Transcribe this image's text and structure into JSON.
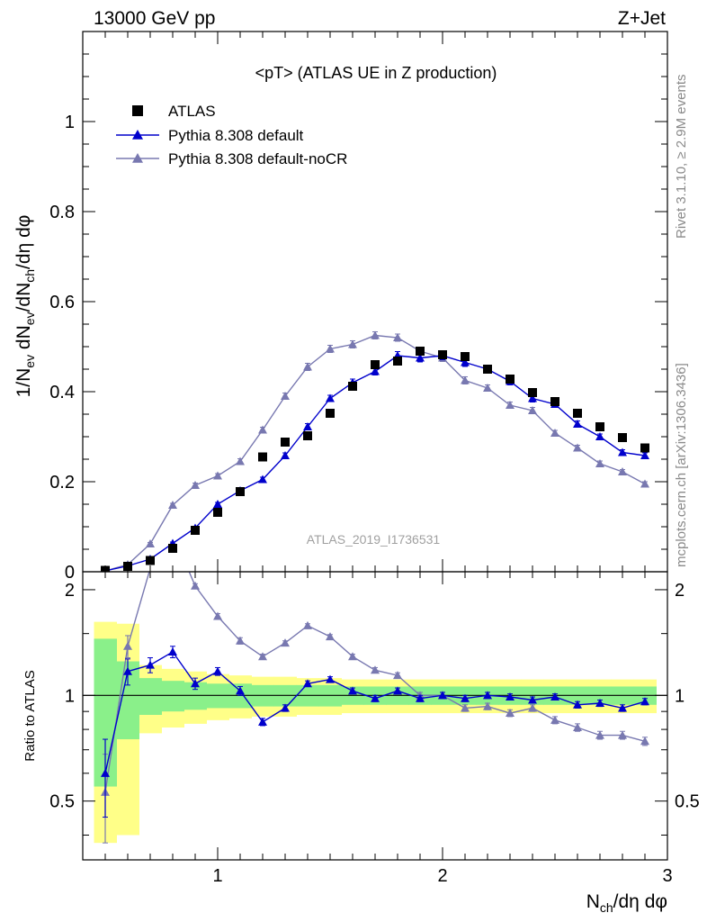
{
  "header": {
    "energy_label": "13000 GeV pp",
    "process_label": "Z+Jet",
    "plot_title": "<pT> (ATLAS UE in Z production)",
    "side_label_top": "Rivet 3.1.10, ≥ 2.9M events",
    "side_label_bottom": "mcplots.cern.ch [arXiv:1306.3436]",
    "watermark": "ATLAS_2019_I1736531"
  },
  "colors": {
    "data": "#000000",
    "default": "#0000cc",
    "nocr": "#7878b0",
    "band_inner": "#8af08a",
    "band_outer": "#ffff88"
  },
  "chart_data": [
    {
      "type": "scatter",
      "panel": "main",
      "ylabel": "1/N_ev dN_ev/dN_ch/dη dφ",
      "ylabel_parts": {
        "a": "1/N",
        "a_sub": "ev",
        "b": " dN",
        "b_sub": "ev",
        "c": "/dN",
        "c_sub": "ch",
        "d": "/dη dφ"
      },
      "xlim": [
        0.4,
        3.0
      ],
      "ylim": [
        0,
        1.2
      ],
      "yticks": [
        0,
        0.2,
        0.4,
        0.6,
        0.8,
        1
      ],
      "ytick_labels": [
        "0",
        "0.2",
        "0.4",
        "0.6",
        "0.8",
        "1"
      ],
      "legend_position": "top-left",
      "x": [
        0.5,
        0.6,
        0.7,
        0.8,
        0.9,
        1.0,
        1.1,
        1.2,
        1.3,
        1.4,
        1.5,
        1.6,
        1.7,
        1.8,
        1.9,
        2.0,
        2.1,
        2.2,
        2.3,
        2.4,
        2.5,
        2.6,
        2.7,
        2.8,
        2.9
      ],
      "series": [
        {
          "name": "ATLAS",
          "marker": "square",
          "values": [
            0.003,
            0.012,
            0.025,
            0.052,
            0.092,
            0.132,
            0.178,
            0.255,
            0.288,
            0.302,
            0.352,
            0.412,
            0.46,
            0.468,
            0.49,
            0.482,
            0.478,
            0.45,
            0.428,
            0.398,
            0.378,
            0.352,
            0.322,
            0.298,
            0.275
          ]
        },
        {
          "name": "Pythia 8.308 default",
          "marker": "triangle",
          "values": [
            0.002,
            0.013,
            0.028,
            0.063,
            0.097,
            0.15,
            0.18,
            0.205,
            0.258,
            0.322,
            0.385,
            0.42,
            0.445,
            0.48,
            0.475,
            0.48,
            0.465,
            0.45,
            0.423,
            0.385,
            0.372,
            0.328,
            0.3,
            0.265,
            0.258
          ],
          "errors": [
            0.001,
            0.002,
            0.003,
            0.003,
            0.004,
            0.004,
            0.005,
            0.005,
            0.006,
            0.007,
            0.007,
            0.008,
            0.008,
            0.009,
            0.009,
            0.009,
            0.009,
            0.008,
            0.008,
            0.008,
            0.007,
            0.007,
            0.006,
            0.006,
            0.006
          ]
        },
        {
          "name": "Pythia 8.308 default-noCR",
          "marker": "triangle",
          "values": [
            0.002,
            0.016,
            0.062,
            0.148,
            0.192,
            0.213,
            0.245,
            0.315,
            0.39,
            0.455,
            0.495,
            0.505,
            0.525,
            0.52,
            0.49,
            0.475,
            0.425,
            0.408,
            0.37,
            0.358,
            0.308,
            0.275,
            0.24,
            0.222,
            0.195
          ],
          "errors": [
            0.001,
            0.002,
            0.003,
            0.004,
            0.005,
            0.005,
            0.006,
            0.006,
            0.007,
            0.008,
            0.008,
            0.008,
            0.008,
            0.008,
            0.008,
            0.008,
            0.008,
            0.007,
            0.007,
            0.007,
            0.006,
            0.006,
            0.006,
            0.005,
            0.005
          ]
        }
      ]
    },
    {
      "type": "line",
      "panel": "ratio",
      "ylabel": "Ratio to ATLAS",
      "xlabel": "N_ch/dη dφ",
      "xlabel_parts": {
        "a": "N",
        "a_sub": "ch",
        "b": "/dη dφ"
      },
      "xlim": [
        0.4,
        3.0
      ],
      "ylim": [
        0.34,
        2.25
      ],
      "yticks": [
        0.5,
        1,
        2
      ],
      "ytick_labels": [
        "0.5",
        "1",
        "2"
      ],
      "xticks": [
        1,
        2,
        3
      ],
      "xtick_labels": [
        "1",
        "2",
        "3"
      ],
      "x": [
        0.5,
        0.6,
        0.7,
        0.8,
        0.9,
        1.0,
        1.1,
        1.2,
        1.3,
        1.4,
        1.5,
        1.6,
        1.7,
        1.8,
        1.9,
        2.0,
        2.1,
        2.2,
        2.3,
        2.4,
        2.5,
        2.6,
        2.7,
        2.8,
        2.9
      ],
      "band_outer": [
        0.62,
        0.6,
        0.22,
        0.19,
        0.17,
        0.15,
        0.14,
        0.13,
        0.13,
        0.12,
        0.12,
        0.11,
        0.11,
        0.11,
        0.11,
        0.11,
        0.11,
        0.11,
        0.11,
        0.11,
        0.11,
        0.11,
        0.11,
        0.11,
        0.11
      ],
      "band_inner": [
        0.45,
        0.25,
        0.12,
        0.1,
        0.09,
        0.08,
        0.08,
        0.07,
        0.07,
        0.07,
        0.07,
        0.06,
        0.06,
        0.06,
        0.06,
        0.06,
        0.06,
        0.06,
        0.06,
        0.06,
        0.06,
        0.06,
        0.06,
        0.06,
        0.06
      ],
      "series": [
        {
          "name": "Pythia 8.308 default",
          "values": [
            0.6,
            1.17,
            1.22,
            1.33,
            1.08,
            1.17,
            1.03,
            0.84,
            0.92,
            1.08,
            1.11,
            1.03,
            0.98,
            1.03,
            0.98,
            1.0,
            0.98,
            1.0,
            0.99,
            0.97,
            0.99,
            0.94,
            0.95,
            0.92,
            0.96
          ],
          "errors": [
            0.15,
            0.1,
            0.06,
            0.05,
            0.04,
            0.03,
            0.03,
            0.02,
            0.02,
            0.02,
            0.02,
            0.02,
            0.02,
            0.02,
            0.02,
            0.02,
            0.02,
            0.02,
            0.02,
            0.02,
            0.02,
            0.02,
            0.02,
            0.02,
            0.02
          ]
        },
        {
          "name": "Pythia 8.308 default-noCR",
          "values": [
            0.53,
            1.38,
            2.3,
            2.9,
            2.05,
            1.68,
            1.43,
            1.29,
            1.41,
            1.58,
            1.47,
            1.29,
            1.18,
            1.14,
            1.0,
            1.0,
            0.92,
            0.93,
            0.89,
            0.92,
            0.85,
            0.81,
            0.77,
            0.77,
            0.74
          ],
          "errors": [
            0.15,
            0.1,
            0.05,
            0.04,
            0.03,
            0.03,
            0.03,
            0.02,
            0.02,
            0.02,
            0.02,
            0.02,
            0.02,
            0.02,
            0.02,
            0.02,
            0.02,
            0.02,
            0.02,
            0.02,
            0.02,
            0.02,
            0.02,
            0.02,
            0.02
          ]
        }
      ]
    }
  ]
}
